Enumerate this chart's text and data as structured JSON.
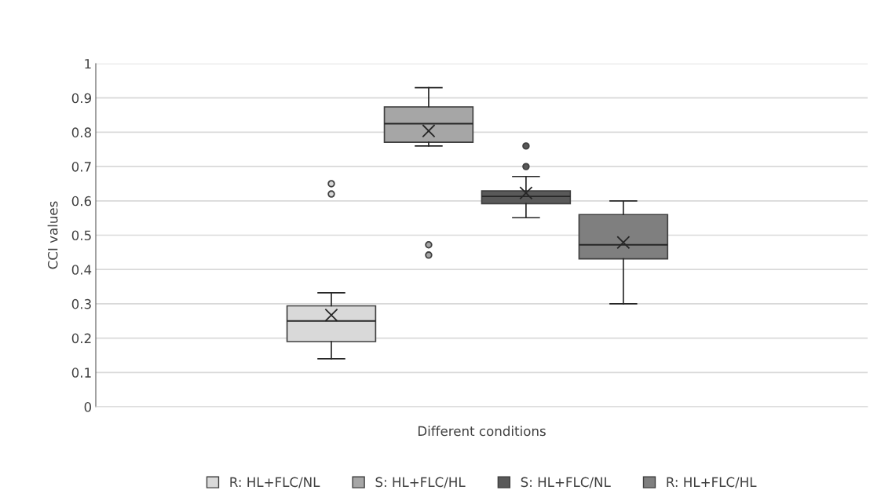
{
  "chart_data": {
    "type": "box",
    "xlabel": "Different conditions",
    "ylabel": "CCI values",
    "categories": [
      null
    ],
    "series": [
      {
        "name": "R: HL+FLC/NL",
        "color": "#d9d9d9",
        "boxes": [
          {
            "low": 0.14,
            "q1": 0.19,
            "median": 0.25,
            "q3": 0.294,
            "high": 0.332,
            "mean": 0.267,
            "outliers": [
              0.65,
              0.62
            ]
          }
        ]
      },
      {
        "name": "S: HL+FLC/HL",
        "color": "#a6a6a6",
        "boxes": [
          {
            "low": 0.76,
            "q1": 0.771,
            "median": 0.825,
            "q3": 0.874,
            "high": 0.93,
            "mean": 0.804,
            "outliers": [
              0.472,
              0.442
            ]
          }
        ]
      },
      {
        "name": "S: HL+FLC/NL",
        "color": "#595959",
        "boxes": [
          {
            "low": 0.551,
            "q1": 0.592,
            "median": 0.613,
            "q3": 0.629,
            "high": 0.671,
            "mean": 0.623,
            "outliers": [
              0.76,
              0.7
            ]
          }
        ]
      },
      {
        "name": "R: HL+FLC/HL",
        "color": "#7f7f7f",
        "boxes": [
          {
            "low": 0.3,
            "q1": 0.431,
            "median": 0.472,
            "q3": 0.56,
            "high": 0.6,
            "mean": 0.479
          }
        ]
      }
    ],
    "ylim": [
      0,
      1
    ],
    "yticks": [
      0,
      0.1,
      0.2,
      0.3,
      0.4,
      0.5,
      0.6,
      0.7,
      0.8,
      0.9,
      1
    ],
    "grid": "y",
    "legend": "bottom"
  }
}
